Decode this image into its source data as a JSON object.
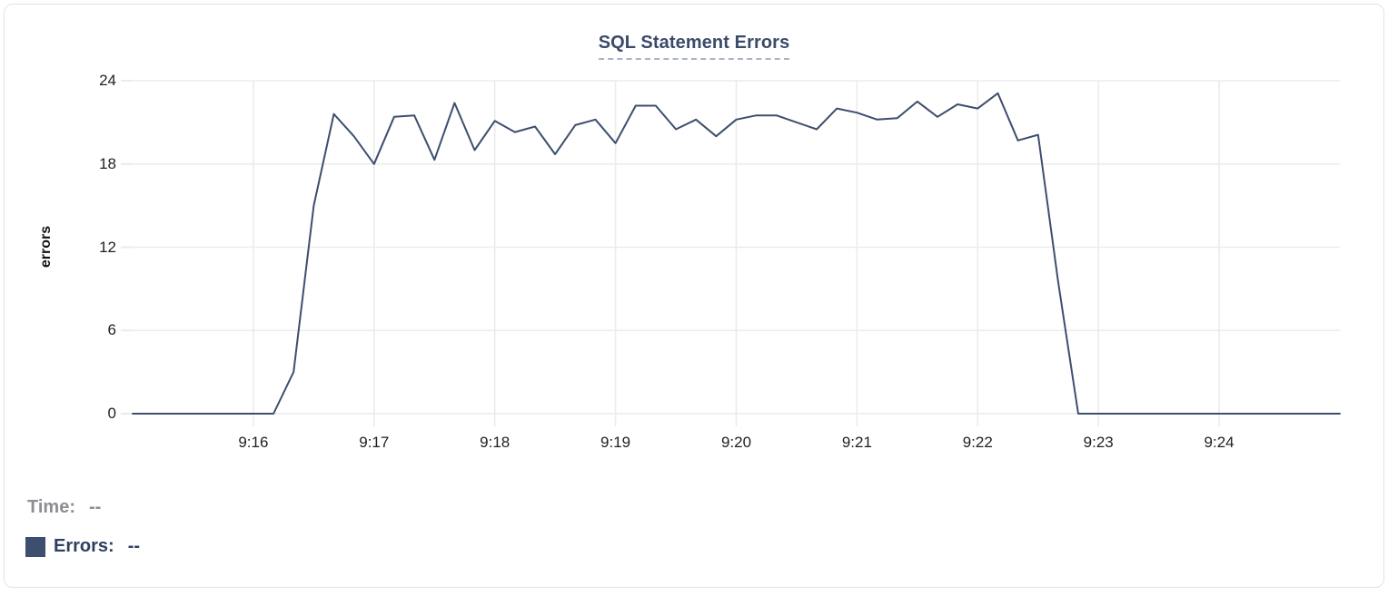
{
  "readout": {
    "time_label": "Time:",
    "time_value": "--",
    "errors_label": "Errors:",
    "errors_value": "--"
  },
  "chart_data": {
    "type": "line",
    "title": "SQL Statement Errors",
    "ylabel": "errors",
    "ylim": [
      0,
      24
    ],
    "y_ticks": [
      24,
      18,
      12,
      6,
      0
    ],
    "x_tick_labels": [
      "9:16",
      "9:17",
      "9:18",
      "9:19",
      "9:20",
      "9:21",
      "9:22",
      "9:23",
      "9:24"
    ],
    "x_range": [
      "9:15:00",
      "9:25:00"
    ],
    "grid": true,
    "legend_position": "bottom-left",
    "colors": {
      "line": "#3d4e6e",
      "grid": "#ebebeb",
      "title": "#3b4a69",
      "title_underline": "#a9b4c6",
      "readout_gray": "#8d8d92",
      "readout_navy": "#2e3f60",
      "axis_text": "#1f1f1f"
    },
    "series": [
      {
        "name": "Errors",
        "color": "#3d4e6e",
        "times": [
          "9:15:00",
          "9:15:10",
          "9:15:20",
          "9:15:30",
          "9:15:40",
          "9:15:50",
          "9:16:00",
          "9:16:10",
          "9:16:20",
          "9:16:30",
          "9:16:40",
          "9:16:50",
          "9:17:00",
          "9:17:10",
          "9:17:20",
          "9:17:30",
          "9:17:40",
          "9:17:50",
          "9:18:00",
          "9:18:10",
          "9:18:20",
          "9:18:30",
          "9:18:40",
          "9:18:50",
          "9:19:00",
          "9:19:10",
          "9:19:20",
          "9:19:30",
          "9:19:40",
          "9:19:50",
          "9:20:00",
          "9:20:10",
          "9:20:20",
          "9:20:30",
          "9:20:40",
          "9:20:50",
          "9:21:00",
          "9:21:10",
          "9:21:20",
          "9:21:30",
          "9:21:40",
          "9:21:50",
          "9:22:00",
          "9:22:10",
          "9:22:20",
          "9:22:30",
          "9:22:40",
          "9:22:50",
          "9:23:00",
          "9:23:10",
          "9:23:20",
          "9:23:30",
          "9:23:40",
          "9:23:50",
          "9:24:00",
          "9:24:10",
          "9:24:20",
          "9:24:30",
          "9:24:40",
          "9:24:50",
          "9:25:00"
        ],
        "values": [
          0,
          0,
          0,
          0,
          0,
          0,
          0,
          0,
          3,
          15,
          21.6,
          20,
          18,
          21.4,
          21.5,
          18.3,
          22.4,
          19,
          21.1,
          20.3,
          20.7,
          18.7,
          20.8,
          21.2,
          19.5,
          22.2,
          22.2,
          20.5,
          21.2,
          20,
          21.2,
          21.5,
          21.5,
          21,
          20.5,
          22,
          21.7,
          21.2,
          21.3,
          22.5,
          21.4,
          22.3,
          22,
          23.1,
          19.7,
          20.1,
          9.5,
          0,
          0,
          0,
          0,
          0,
          0,
          0,
          0,
          0,
          0,
          0,
          0,
          0,
          0
        ]
      }
    ]
  }
}
